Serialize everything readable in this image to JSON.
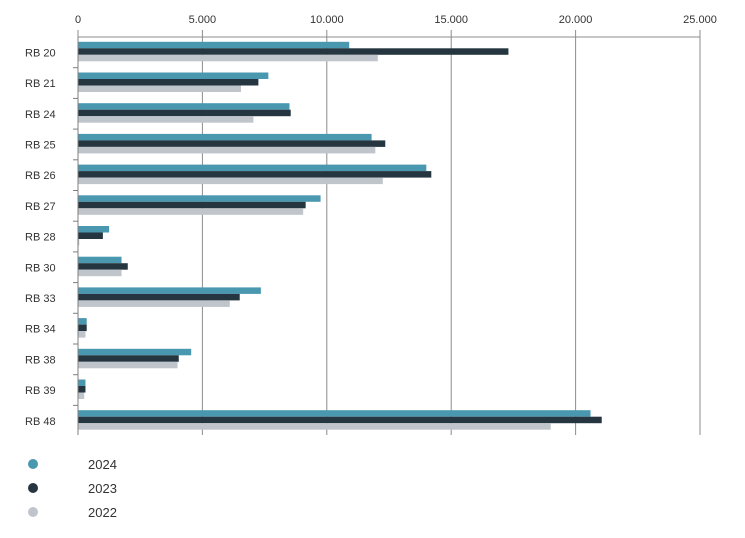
{
  "chart_data": {
    "type": "bar",
    "orientation": "horizontal",
    "categories": [
      "RB 20",
      "RB 21",
      "RB 24",
      "RB 25",
      "RB 26",
      "RB 27",
      "RB 28",
      "RB 30",
      "RB 33",
      "RB 34",
      "RB 38",
      "RB 39",
      "RB 48"
    ],
    "series": [
      {
        "name": "2024",
        "color": "#4a97b0",
        "values": [
          10900,
          7650,
          8500,
          11800,
          14000,
          9750,
          1250,
          1750,
          7350,
          350,
          4550,
          300,
          20600
        ]
      },
      {
        "name": "2023",
        "color": "#253640",
        "values": [
          17300,
          7250,
          8550,
          12350,
          14200,
          9150,
          1000,
          2000,
          6500,
          350,
          4050,
          300,
          21050
        ]
      },
      {
        "name": "2022",
        "color": "#bfc5cb",
        "values": [
          12050,
          6550,
          7050,
          11950,
          12250,
          9050,
          50,
          1750,
          6100,
          300,
          4000,
          250,
          19000
        ]
      }
    ],
    "xlim": [
      0,
      25000
    ],
    "x_ticks": [
      0,
      5000,
      10000,
      15000,
      20000,
      25000
    ],
    "x_tick_labels": [
      "0",
      "5.000",
      "10.000",
      "15.000",
      "20.000",
      "25.000"
    ],
    "grid": "vertical",
    "legend_position": "bottom-left",
    "title": "",
    "xlabel": "",
    "ylabel": ""
  }
}
